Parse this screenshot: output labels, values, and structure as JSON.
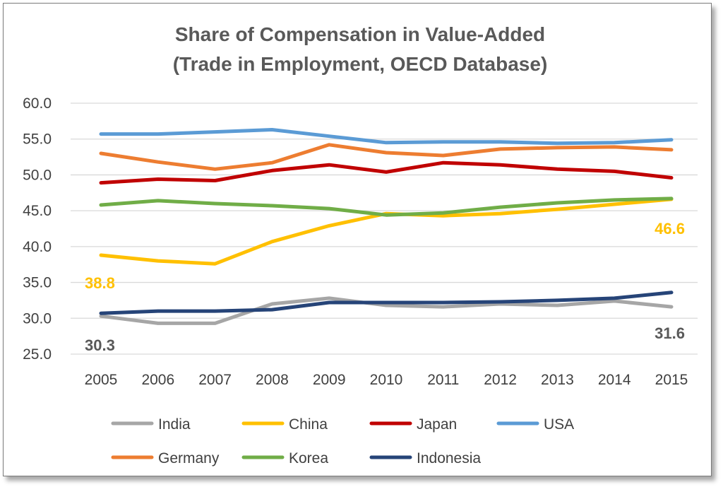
{
  "chart_data": {
    "type": "line",
    "title": "Share of Compensation in Value-Added",
    "subtitle": "(Trade in Employment, OECD Database)",
    "x": [
      "2005",
      "2006",
      "2007",
      "2008",
      "2009",
      "2010",
      "2011",
      "2012",
      "2013",
      "2014",
      "2015"
    ],
    "ylim": [
      25.0,
      60.0
    ],
    "yticks": [
      "60.0",
      "55.0",
      "50.0",
      "45.0",
      "40.0",
      "35.0",
      "30.0",
      "25.0"
    ],
    "grid": true,
    "legend_position": "bottom",
    "series": [
      {
        "name": "India",
        "color": "#a6a6a6",
        "values": [
          30.3,
          29.3,
          29.3,
          32.0,
          32.8,
          31.8,
          31.6,
          32.0,
          31.8,
          32.4,
          31.6
        ]
      },
      {
        "name": "China",
        "color": "#ffc000",
        "values": [
          38.8,
          38.0,
          37.6,
          40.7,
          42.9,
          44.6,
          44.3,
          44.6,
          45.2,
          45.9,
          46.6
        ]
      },
      {
        "name": "Japan",
        "color": "#c00000",
        "values": [
          48.9,
          49.4,
          49.2,
          50.6,
          51.4,
          50.4,
          51.7,
          51.4,
          50.8,
          50.5,
          49.6
        ]
      },
      {
        "name": "USA",
        "color": "#5b9bd5",
        "values": [
          55.7,
          55.7,
          56.0,
          56.3,
          55.4,
          54.5,
          54.6,
          54.6,
          54.4,
          54.5,
          54.9
        ]
      },
      {
        "name": "Germany",
        "color": "#ed7d31",
        "values": [
          53.0,
          51.8,
          50.8,
          51.7,
          54.2,
          53.1,
          52.7,
          53.6,
          53.8,
          53.9,
          53.5
        ]
      },
      {
        "name": "Korea",
        "color": "#70ad47",
        "values": [
          45.8,
          46.4,
          46.0,
          45.7,
          45.3,
          44.4,
          44.7,
          45.5,
          46.1,
          46.5,
          46.7
        ]
      },
      {
        "name": "Indonesia",
        "color": "#264478",
        "values": [
          30.7,
          31.0,
          31.0,
          31.2,
          32.2,
          32.2,
          32.2,
          32.3,
          32.5,
          32.8,
          33.6
        ]
      }
    ],
    "annotations": [
      {
        "text": "38.8",
        "color": "#ffc000"
      },
      {
        "text": "46.6",
        "color": "#ffc000"
      },
      {
        "text": "30.3",
        "color": "#595959"
      },
      {
        "text": "31.6",
        "color": "#595959"
      }
    ]
  }
}
